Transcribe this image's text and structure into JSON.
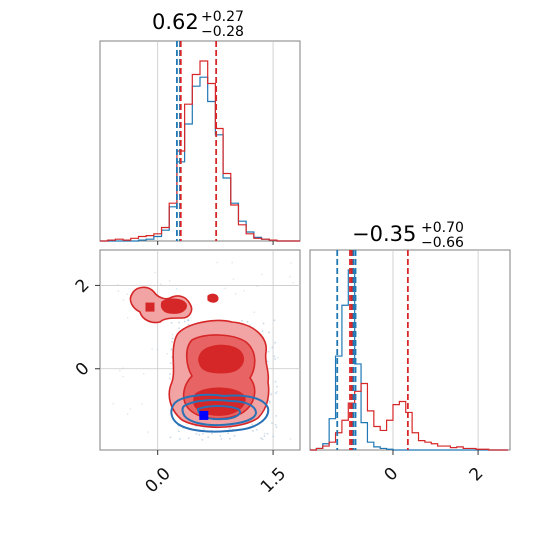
{
  "chart_data": {
    "type": "corner",
    "parameters": [
      "p0",
      "p1"
    ],
    "colors": {
      "blue": "#1f77b4",
      "red": "#d62728"
    },
    "titles": [
      {
        "value": "0.62",
        "upper": "+0.27",
        "lower": "−0.28"
      },
      {
        "value": "−0.35",
        "upper": "+0.70",
        "lower": "−0.66"
      }
    ],
    "xlim": [
      [
        -0.75,
        1.85
      ],
      [
        -1.95,
        2.75
      ]
    ],
    "ylim_2d": [
      -1.95,
      2.85
    ],
    "ticks": {
      "p0": {
        "values": [
          0.0,
          1.5
        ],
        "labels": [
          "0.0",
          "1.5"
        ]
      },
      "p1": {
        "values": [
          0,
          2
        ],
        "labels": [
          "0",
          "2"
        ]
      }
    },
    "grid": true,
    "hist_p0": {
      "bin_edges": [
        -0.75,
        -0.65,
        -0.55,
        -0.45,
        -0.35,
        -0.25,
        -0.15,
        -0.05,
        0.05,
        0.15,
        0.25,
        0.35,
        0.45,
        0.55,
        0.65,
        0.75,
        0.85,
        0.95,
        1.05,
        1.15,
        1.25,
        1.35,
        1.45,
        1.55,
        1.65,
        1.75,
        1.85
      ],
      "series": [
        {
          "color": "blue",
          "counts": [
            0,
            0,
            0,
            0,
            0,
            1,
            2,
            5,
            12,
            38,
            88,
            130,
            172,
            182,
            155,
            118,
            70,
            42,
            22,
            10,
            4,
            2,
            1,
            0,
            0,
            0
          ]
        },
        {
          "color": "red",
          "counts": [
            0,
            1,
            2,
            1,
            3,
            5,
            6,
            8,
            15,
            42,
            100,
            152,
            185,
            200,
            175,
            125,
            75,
            40,
            18,
            8,
            3,
            2,
            1,
            0,
            0,
            0
          ]
        }
      ],
      "quantile_lines": [
        {
          "color": "blue",
          "values": [
            0.25,
            0.29
          ]
        },
        {
          "color": "red",
          "values": [
            0.3,
            0.76
          ]
        }
      ]
    },
    "hist_p1": {
      "bin_edges": [
        -1.95,
        -1.8,
        -1.65,
        -1.5,
        -1.35,
        -1.2,
        -1.05,
        -0.9,
        -0.75,
        -0.6,
        -0.45,
        -0.3,
        -0.15,
        0.0,
        0.15,
        0.3,
        0.45,
        0.6,
        0.75,
        0.9,
        1.05,
        1.2,
        1.35,
        1.5,
        1.65,
        1.8,
        1.95,
        2.1,
        2.25,
        2.4,
        2.55,
        2.7
      ],
      "series": [
        {
          "color": "blue",
          "counts": [
            0,
            2,
            8,
            40,
            120,
            185,
            230,
            110,
            35,
            10,
            4,
            2,
            1,
            0,
            0,
            0,
            0,
            0,
            0,
            0,
            0,
            0,
            0,
            0,
            0,
            0,
            0,
            0,
            0,
            0,
            0
          ]
        },
        {
          "color": "red",
          "counts": [
            0,
            2,
            5,
            10,
            22,
            38,
            60,
            75,
            85,
            50,
            30,
            25,
            38,
            58,
            62,
            48,
            22,
            12,
            10,
            8,
            5,
            5,
            3,
            4,
            2,
            2,
            1,
            1,
            0,
            0,
            0
          ]
        }
      ],
      "quantile_lines": [
        {
          "color": "blue",
          "values": [
            -1.31,
            -0.93,
            -0.88
          ]
        },
        {
          "color": "red",
          "values": [
            -1.01,
            -0.97,
            0.35
          ]
        }
      ]
    },
    "scatter_2d": {
      "red_square": {
        "x": 0.75,
        "y": 0.12
      },
      "red_square_2": {
        "x": -0.1,
        "y": 1.48
      },
      "blue_square": {
        "x": 0.6,
        "y": -1.12
      }
    }
  }
}
